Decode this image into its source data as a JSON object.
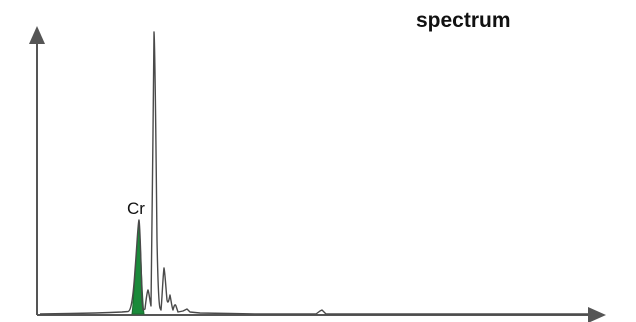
{
  "title": "spectrum",
  "peak_label": "Cr",
  "colors": {
    "axis": "#555555",
    "trace": "#4a4a4a",
    "highlight": "#1a8a3a"
  }
}
